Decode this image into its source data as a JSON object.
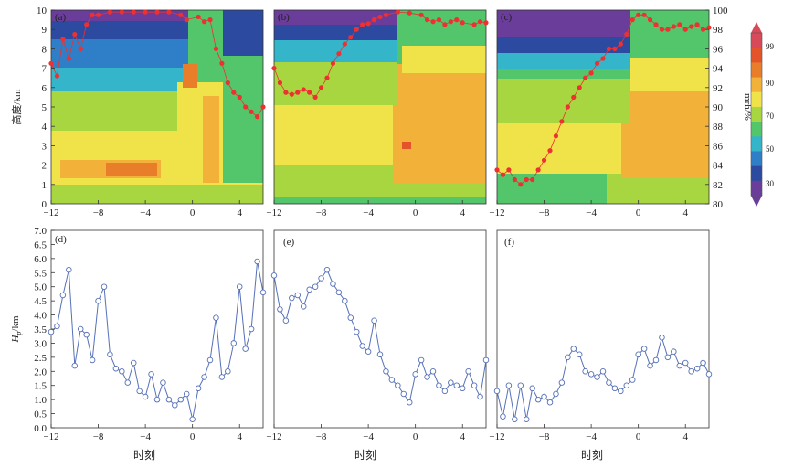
{
  "colors": {
    "cb_0": "#6a3d9a",
    "cb_1": "#2c4aa0",
    "cb_2": "#2f7fc8",
    "cb_3": "#35b5c9",
    "cb_4": "#53c56a",
    "cb_5": "#a8d640",
    "cb_6": "#f0e34a",
    "cb_7": "#f2b23a",
    "cb_8": "#e87e2a",
    "cb_9": "#e4542a",
    "cb_10": "#d84a5a",
    "dots": "#ee3030",
    "hpbl_line": "#5570b8"
  },
  "chart_data": [
    {
      "panel": "(a)",
      "type": "heatmap",
      "xlim": [
        -12,
        6
      ],
      "ylim": [
        0,
        10
      ],
      "xticks": [
        "−12",
        "−8",
        "−4",
        "0",
        "4"
      ],
      "yticks": [
        "0",
        "1",
        "2",
        "3",
        "4",
        "5",
        "6",
        "7",
        "8",
        "9",
        "10"
      ],
      "ylabel": "高度/km",
      "red_points_mrh": [
        [
          -12,
          94.5
        ],
        [
          -11.5,
          93.2
        ],
        [
          -11,
          97.0
        ],
        [
          -10.5,
          95.0
        ],
        [
          -10,
          97.5
        ],
        [
          -9.5,
          96.0
        ],
        [
          -9,
          98.5
        ],
        [
          -8.5,
          99.5
        ],
        [
          -8,
          99.5
        ],
        [
          -7,
          99.8
        ],
        [
          -6,
          99.8
        ],
        [
          -5,
          99.8
        ],
        [
          -4,
          99.8
        ],
        [
          -3,
          99.8
        ],
        [
          -2,
          99.8
        ],
        [
          -1,
          99.5
        ],
        [
          -0.5,
          99.0
        ],
        [
          0.5,
          99.3
        ],
        [
          1,
          98.8
        ],
        [
          1.5,
          99.0
        ],
        [
          2,
          96.0
        ],
        [
          2.5,
          94.5
        ],
        [
          3,
          92.5
        ],
        [
          3.5,
          91.5
        ],
        [
          4,
          91.0
        ],
        [
          4.5,
          90.0
        ],
        [
          5,
          89.5
        ],
        [
          5.5,
          89.0
        ],
        [
          6,
          90.0
        ]
      ]
    },
    {
      "panel": "(b)",
      "type": "heatmap",
      "xlim": [
        -12,
        6
      ],
      "ylim": [
        0,
        10
      ],
      "xticks": [
        "−12",
        "−8",
        "−4",
        "0",
        "4"
      ],
      "red_points_mrh": [
        [
          -12,
          94.0
        ],
        [
          -11.5,
          92.5
        ],
        [
          -11,
          91.5
        ],
        [
          -10.5,
          91.3
        ],
        [
          -10,
          91.5
        ],
        [
          -9.5,
          91.8
        ],
        [
          -9,
          91.5
        ],
        [
          -8.5,
          91.0
        ],
        [
          -8,
          92.0
        ],
        [
          -7.5,
          93.0
        ],
        [
          -7,
          94.5
        ],
        [
          -6.5,
          95.5
        ],
        [
          -6,
          96.5
        ],
        [
          -5.5,
          97.2
        ],
        [
          -5,
          98.0
        ],
        [
          -4.5,
          98.5
        ],
        [
          -4,
          98.6
        ],
        [
          -3.5,
          99.0
        ],
        [
          -3,
          99.3
        ],
        [
          -2.5,
          99.5
        ],
        [
          -1.5,
          99.8
        ],
        [
          -0.5,
          99.7
        ],
        [
          0.5,
          99.5
        ],
        [
          1,
          99.0
        ],
        [
          1.5,
          98.8
        ],
        [
          2,
          99.0
        ],
        [
          2.5,
          98.5
        ],
        [
          3,
          98.8
        ],
        [
          3.5,
          99.0
        ],
        [
          4,
          98.7
        ],
        [
          5,
          98.5
        ],
        [
          5.5,
          98.8
        ],
        [
          6,
          98.7
        ]
      ]
    },
    {
      "panel": "(c)",
      "type": "heatmap",
      "xlim": [
        -12,
        6
      ],
      "ylim": [
        80,
        100
      ],
      "xticks": [
        "−12",
        "−8",
        "−4",
        "0",
        "4"
      ],
      "yticks_right": [
        "80",
        "82",
        "84",
        "86",
        "88",
        "90",
        "92",
        "94",
        "96",
        "98",
        "100"
      ],
      "ylabel_right": "mrh/%",
      "red_points_mrh": [
        [
          -12,
          83.5
        ],
        [
          -11.5,
          83.0
        ],
        [
          -11,
          83.5
        ],
        [
          -10.5,
          82.5
        ],
        [
          -10,
          82.0
        ],
        [
          -9.5,
          82.5
        ],
        [
          -9,
          82.5
        ],
        [
          -8.5,
          83.5
        ],
        [
          -8,
          84.5
        ],
        [
          -7.5,
          85.5
        ],
        [
          -7,
          87.0
        ],
        [
          -6.5,
          88.5
        ],
        [
          -6,
          90.0
        ],
        [
          -5.5,
          91.0
        ],
        [
          -5,
          92.0
        ],
        [
          -4.5,
          93.0
        ],
        [
          -4,
          93.5
        ],
        [
          -3.5,
          94.5
        ],
        [
          -3,
          95.0
        ],
        [
          -2.5,
          96.0
        ],
        [
          -2,
          96.0
        ],
        [
          -1.5,
          96.5
        ],
        [
          -1,
          97.5
        ],
        [
          -0.5,
          99.0
        ],
        [
          0,
          99.5
        ],
        [
          0.5,
          99.5
        ],
        [
          1,
          99.0
        ],
        [
          1.5,
          98.5
        ],
        [
          2,
          98.0
        ],
        [
          2.5,
          98.0
        ],
        [
          3,
          98.3
        ],
        [
          3.5,
          98.5
        ],
        [
          4,
          98.0
        ],
        [
          4.5,
          98.3
        ],
        [
          5,
          98.5
        ],
        [
          5.5,
          98.0
        ],
        [
          6,
          98.2
        ]
      ]
    },
    {
      "panel": "(d)",
      "type": "line",
      "xlim": [
        -12,
        6
      ],
      "ylim": [
        0,
        7
      ],
      "xticks": [
        "−12",
        "−8",
        "−4",
        "0",
        "4"
      ],
      "yticks": [
        "0.0",
        "0.5",
        "1.0",
        "1.5",
        "2.0",
        "2.5",
        "3.0",
        "3.5",
        "4.0",
        "4.5",
        "5.0",
        "5.5",
        "6.0",
        "6.5",
        "7.0"
      ],
      "xlabel": "时刻",
      "ylabel": "H",
      "ylabel_sub": "p",
      "ylabel_unit": "/km",
      "x": [
        -12,
        -11.5,
        -11,
        -10.5,
        -10,
        -9.5,
        -9,
        -8.5,
        -8,
        -7.5,
        -7,
        -6.5,
        -6,
        -5.5,
        -5,
        -4.5,
        -4,
        -3.5,
        -3,
        -2.5,
        -2,
        -1.5,
        -1,
        -0.5,
        0,
        0.5,
        1,
        1.5,
        2,
        2.5,
        3,
        3.5,
        4,
        4.5,
        5,
        5.5,
        6
      ],
      "values": [
        3.4,
        3.6,
        4.7,
        5.6,
        2.2,
        3.5,
        3.3,
        2.4,
        4.5,
        5.0,
        2.6,
        2.1,
        2.0,
        1.6,
        2.3,
        1.3,
        1.1,
        1.9,
        1.0,
        1.6,
        1.0,
        0.8,
        1.0,
        1.2,
        0.3,
        1.4,
        1.8,
        2.4,
        3.9,
        1.8,
        2.0,
        3.0,
        5.0,
        2.8,
        3.5,
        5.9,
        4.8
      ]
    },
    {
      "panel": "(e)",
      "type": "line",
      "xlim": [
        -12,
        6
      ],
      "ylim": [
        0,
        7
      ],
      "xticks": [
        "−12",
        "−8",
        "−4",
        "0",
        "4"
      ],
      "xlabel": "时刻",
      "x": [
        -12,
        -11.5,
        -11,
        -10.5,
        -10,
        -9.5,
        -9,
        -8.5,
        -8,
        -7.5,
        -7,
        -6.5,
        -6,
        -5.5,
        -5,
        -4.5,
        -4,
        -3.5,
        -3,
        -2.5,
        -2,
        -1.5,
        -1,
        -0.5,
        0,
        0.5,
        1,
        1.5,
        2,
        2.5,
        3,
        3.5,
        4,
        4.5,
        5,
        5.5,
        6
      ],
      "values": [
        5.4,
        4.2,
        3.8,
        4.6,
        4.7,
        4.3,
        4.9,
        5.0,
        5.3,
        5.6,
        5.1,
        4.8,
        4.5,
        3.9,
        3.4,
        2.9,
        2.7,
        3.8,
        2.6,
        2.0,
        1.7,
        1.5,
        1.2,
        0.9,
        1.9,
        2.4,
        1.8,
        2.0,
        1.5,
        1.3,
        1.6,
        1.5,
        1.4,
        2.0,
        1.5,
        1.1,
        2.4
      ]
    },
    {
      "panel": "(f)",
      "type": "line",
      "xlim": [
        -12,
        6
      ],
      "ylim": [
        0,
        7
      ],
      "xticks": [
        "−12",
        "−8",
        "−4",
        "0",
        "4"
      ],
      "xlabel": "时刻",
      "x": [
        -12,
        -11.5,
        -11,
        -10.5,
        -10,
        -9.5,
        -9,
        -8.5,
        -8,
        -7.5,
        -7,
        -6.5,
        -6,
        -5.5,
        -5,
        -4.5,
        -4,
        -3.5,
        -3,
        -2.5,
        -2,
        -1.5,
        -1,
        -0.5,
        0,
        0.5,
        1,
        1.5,
        2,
        2.5,
        3,
        3.5,
        4,
        4.5,
        5,
        5.5,
        6
      ],
      "values": [
        1.3,
        0.4,
        1.5,
        0.3,
        1.5,
        0.3,
        1.4,
        1.0,
        1.1,
        0.9,
        1.2,
        1.6,
        2.5,
        2.8,
        2.6,
        2.0,
        1.9,
        1.8,
        2.0,
        1.6,
        1.4,
        1.3,
        1.5,
        1.7,
        2.6,
        2.8,
        2.2,
        2.4,
        3.2,
        2.5,
        2.7,
        2.2,
        2.3,
        2.0,
        2.1,
        2.3,
        1.9
      ]
    }
  ],
  "colorbar": {
    "label": "mrh/%",
    "ticks": [
      "30",
      "50",
      "70",
      "90",
      "99"
    ]
  }
}
